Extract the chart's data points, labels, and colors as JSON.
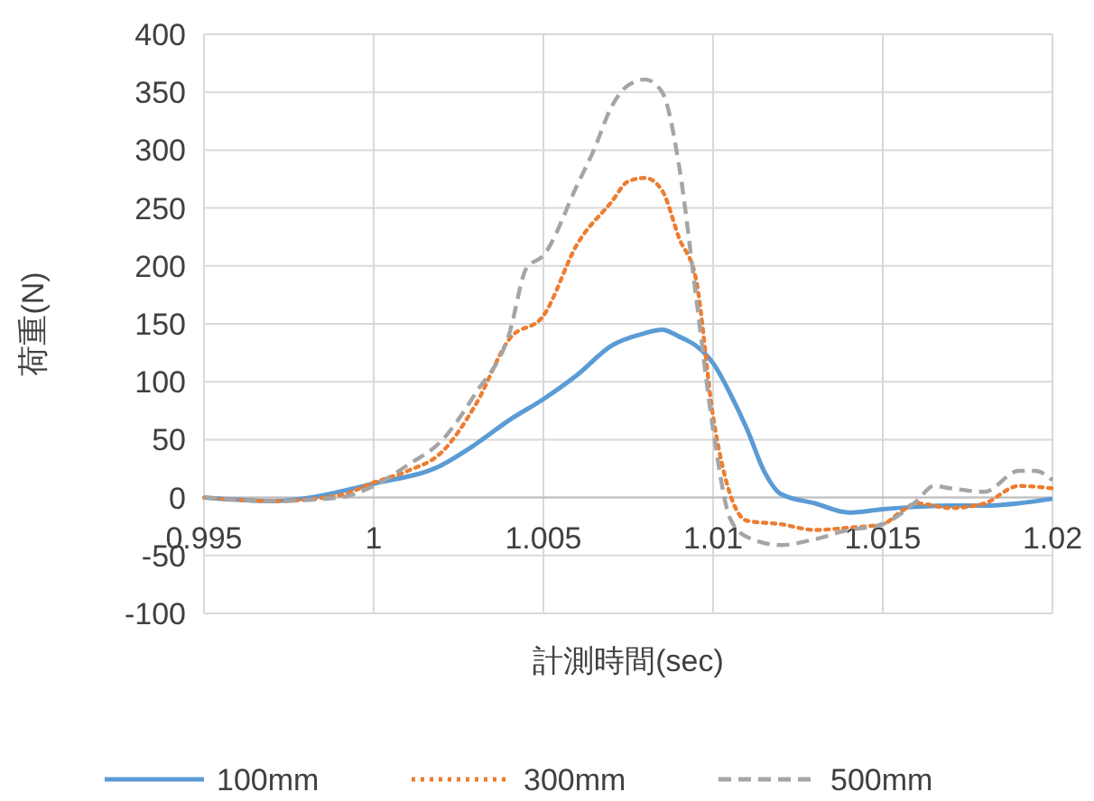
{
  "chart_data": {
    "type": "line",
    "xlabel": "計測時間(sec)",
    "ylabel": "荷重(N)",
    "xlim": [
      0.995,
      1.02
    ],
    "xticks": [
      0.995,
      1,
      1.005,
      1.01,
      1.015,
      1.02
    ],
    "ylim": [
      -100,
      400
    ],
    "yticks": [
      -100,
      -50,
      0,
      50,
      100,
      150,
      200,
      250,
      300,
      350,
      400
    ],
    "grid": true,
    "legend": "bottom",
    "marker": "none",
    "series": [
      {
        "name": "100mm",
        "color": "#5b9bd5",
        "line_style": "solid",
        "x": [
          0.995,
          0.997,
          1,
          1.002,
          1.003,
          1.004,
          1.005,
          1.006,
          1.007,
          1.008,
          1.0085,
          1.009,
          1.0095,
          1.01,
          1.0105,
          1.011,
          1.0115,
          1.012,
          1.013,
          1.014,
          1.015,
          1.016,
          1.017,
          1.018,
          1.019,
          1.02
        ],
        "values": [
          0,
          -3,
          12,
          28,
          46,
          67,
          85,
          106,
          131,
          142,
          145,
          139,
          131,
          116,
          90,
          59,
          23,
          3,
          -5,
          -13,
          -10,
          -8,
          -7,
          -7,
          -5,
          -1
        ]
      },
      {
        "name": "300mm",
        "color": "#ed7d31",
        "line_style": "dotted",
        "x": [
          0.995,
          0.997,
          0.999,
          1,
          1.001,
          1.002,
          1.003,
          1.004,
          1.005,
          1.006,
          1.007,
          1.0075,
          1.008,
          1.0085,
          1.009,
          1.0095,
          1.01,
          1.0105,
          1.011,
          1.012,
          1.013,
          1.014,
          1.015,
          1.0155,
          1.016,
          1.017,
          1.018,
          1.019,
          1.02
        ],
        "values": [
          0,
          -3,
          2,
          13,
          23,
          39,
          80,
          137,
          157,
          219,
          255,
          273,
          276,
          265,
          224,
          188,
          70,
          3,
          -20,
          -23,
          -28,
          -26,
          -23,
          -13,
          -5,
          -9,
          -5,
          10,
          8
        ]
      },
      {
        "name": "500mm",
        "color": "#a5a5a5",
        "line_style": "dashed",
        "x": [
          0.995,
          0.997,
          0.999,
          1,
          1.001,
          1.002,
          1.003,
          1.004,
          1.0045,
          1.005,
          1.006,
          1.0065,
          1.007,
          1.0075,
          1.008,
          1.0085,
          1.009,
          1.0095,
          1.01,
          1.0105,
          1.011,
          1.012,
          1.013,
          1.014,
          1.0145,
          1.015,
          1.016,
          1.0165,
          1.017,
          1.018,
          1.019,
          1.0195,
          1.02
        ],
        "values": [
          0,
          -3,
          0,
          10,
          28,
          49,
          90,
          142,
          198,
          209,
          270,
          301,
          337,
          356,
          361,
          350,
          286,
          173,
          59,
          -18,
          -34,
          -41,
          -36,
          -28,
          -26,
          -23,
          -3,
          10,
          8,
          5,
          23,
          23,
          15
        ]
      }
    ]
  }
}
